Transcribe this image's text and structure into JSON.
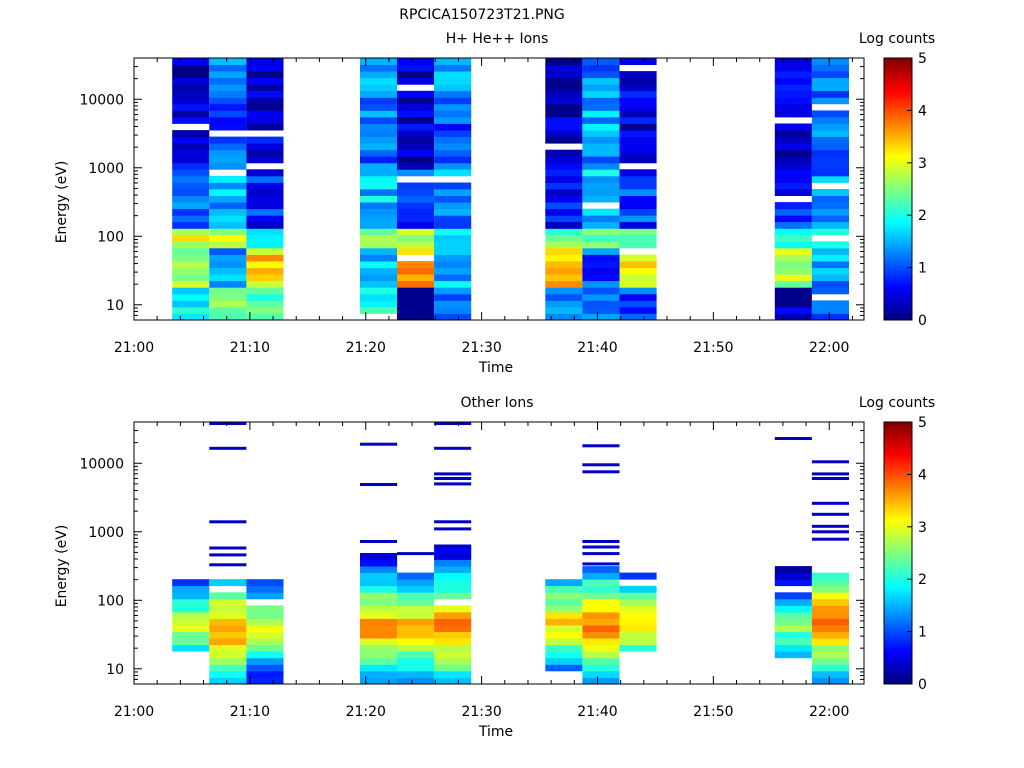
{
  "figure": {
    "title": "RPCICA150723T21.PNG"
  },
  "chart_data": [
    {
      "type": "heatmap",
      "title": "H+ He++ Ions",
      "xlabel": "Time",
      "ylabel": "Energy (eV)",
      "x_ticks": [
        "21:00",
        "21:10",
        "21:20",
        "21:30",
        "21:40",
        "21:50",
        "22:00"
      ],
      "x_range": [
        "21:00",
        "22:03"
      ],
      "y_scale": "log",
      "y_range": [
        6,
        40000
      ],
      "y_ticks": [
        "10",
        "100",
        "1000",
        "10000"
      ],
      "colorbar": {
        "label": "Log counts",
        "range": [
          0,
          5
        ],
        "ticks": [
          "0",
          "1",
          "2",
          "3",
          "4",
          "5"
        ]
      },
      "columns": [
        {
          "t0": 3.3,
          "t1": 6.5,
          "profile": [
            2.0,
            2.5,
            3.0,
            1.2,
            0.5,
            0.2
          ]
        },
        {
          "t0": 6.5,
          "t1": 9.7,
          "profile": [
            2.5,
            1.4,
            2.8,
            1.5,
            1.0,
            1.2
          ]
        },
        {
          "t0": 9.7,
          "t1": 12.9,
          "profile": [
            2.2,
            3.3,
            1.8,
            0.8,
            0.4,
            0.3
          ]
        },
        {
          "t0": 19.5,
          "t1": 22.7,
          "profile": [
            1.8,
            1.6,
            2.4,
            1.6,
            1.2,
            1.3
          ]
        },
        {
          "t0": 22.7,
          "t1": 25.9,
          "profile": [
            0.3,
            3.6,
            2.6,
            1.0,
            0.3,
            0.3
          ]
        },
        {
          "t0": 25.9,
          "t1": 29.1,
          "profile": [
            1.2,
            1.5,
            2.0,
            1.3,
            1.0,
            1.3
          ]
        },
        {
          "t0": 35.5,
          "t1": 38.7,
          "profile": [
            1.2,
            3.5,
            2.5,
            0.7,
            0.3,
            0.2
          ]
        },
        {
          "t0": 38.7,
          "t1": 41.9,
          "profile": [
            1.0,
            1.0,
            2.2,
            1.6,
            1.4,
            1.3
          ]
        },
        {
          "t0": 41.9,
          "t1": 45.1,
          "profile": [
            1.0,
            3.3,
            2.6,
            0.9,
            0.4,
            0.4
          ]
        },
        {
          "t0": 55.3,
          "t1": 58.5,
          "profile": [
            0.4,
            2.6,
            2.0,
            0.8,
            0.3,
            0.4
          ]
        },
        {
          "t0": 58.5,
          "t1": 61.7,
          "profile": [
            1.0,
            1.4,
            2.4,
            1.3,
            1.2,
            1.3
          ]
        }
      ]
    },
    {
      "type": "heatmap",
      "title": "Other Ions",
      "xlabel": "Time",
      "ylabel": "Energy (eV)",
      "x_ticks": [
        "21:00",
        "21:10",
        "21:20",
        "21:30",
        "21:40",
        "21:50",
        "22:00"
      ],
      "x_range": [
        "21:00",
        "22:03"
      ],
      "y_scale": "log",
      "y_range": [
        6,
        40000
      ],
      "y_ticks": [
        "10",
        "100",
        "1000",
        "10000"
      ],
      "colorbar": {
        "label": "Log counts",
        "range": [
          0,
          5
        ],
        "ticks": [
          "0",
          "1",
          "2",
          "3",
          "4",
          "5"
        ]
      },
      "columns": [
        {
          "t0": 3.3,
          "t1": 6.5,
          "emin": 20,
          "emax": 200,
          "peak": 45,
          "pval": 3.0
        },
        {
          "t0": 6.5,
          "t1": 9.7,
          "emin": 6,
          "emax": 250,
          "peak": 38,
          "pval": 3.9
        },
        {
          "t0": 9.7,
          "t1": 12.9,
          "emin": 6,
          "emax": 200,
          "peak": 40,
          "pval": 3.2
        },
        {
          "t0": 19.5,
          "t1": 22.7,
          "emin": 6,
          "emax": 450,
          "peak": 40,
          "pval": 3.8
        },
        {
          "t0": 22.7,
          "t1": 25.9,
          "emin": 6,
          "emax": 230,
          "peak": 40,
          "pval": 3.6
        },
        {
          "t0": 25.9,
          "t1": 29.1,
          "emin": 6,
          "emax": 600,
          "peak": 40,
          "pval": 4.0
        },
        {
          "t0": 35.5,
          "t1": 38.7,
          "emin": 6,
          "emax": 220,
          "peak": 48,
          "pval": 3.5
        },
        {
          "t0": 38.7,
          "t1": 41.9,
          "emin": 6,
          "emax": 300,
          "peak": 40,
          "pval": 4.1
        },
        {
          "t0": 41.9,
          "t1": 45.1,
          "emin": 20,
          "emax": 250,
          "peak": 45,
          "pval": 3.4
        },
        {
          "t0": 55.3,
          "t1": 58.5,
          "emin": 15,
          "emax": 320,
          "peak": 40,
          "pval": 2.6
        },
        {
          "t0": 58.5,
          "t1": 61.7,
          "emin": 6,
          "emax": 230,
          "peak": 50,
          "pval": 4.1
        }
      ],
      "sparse_lines": [
        {
          "t0": 6.5,
          "t1": 9.7,
          "e": [
            38000,
            16500,
            1400,
            580,
            460,
            330
          ]
        },
        {
          "t0": 19.5,
          "t1": 22.7,
          "e": [
            19000,
            4900,
            720
          ]
        },
        {
          "t0": 22.7,
          "t1": 25.9,
          "e": [
            480
          ]
        },
        {
          "t0": 25.9,
          "t1": 29.1,
          "e": [
            38000,
            16500,
            7000,
            6000,
            5000,
            1400,
            1100,
            620
          ]
        },
        {
          "t0": 38.7,
          "t1": 41.9,
          "e": [
            18000,
            9500,
            7500,
            720,
            600,
            480,
            340
          ]
        },
        {
          "t0": 55.3,
          "t1": 58.5,
          "e": [
            23000
          ]
        },
        {
          "t0": 58.5,
          "t1": 61.7,
          "e": [
            10500,
            7000,
            6000,
            2600,
            1800,
            1200,
            1000,
            780
          ]
        }
      ]
    }
  ]
}
